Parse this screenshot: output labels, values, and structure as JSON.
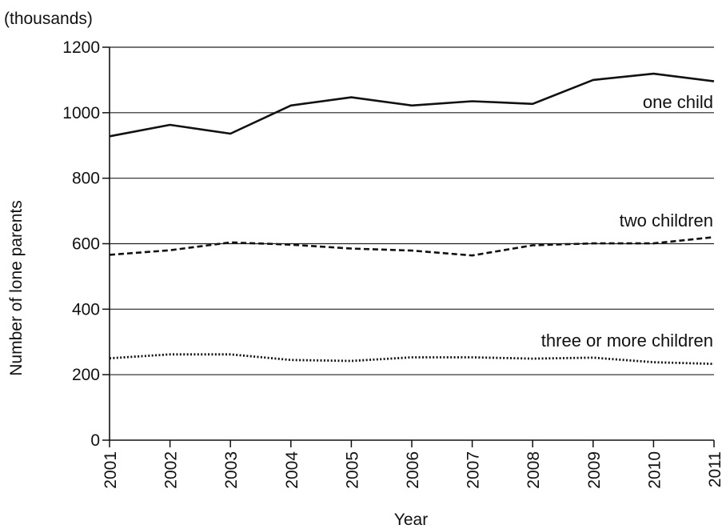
{
  "chart_data": {
    "type": "line",
    "unit_label": "(thousands)",
    "xlabel": "Year",
    "ylabel": "Number of lone parents",
    "x": [
      2001,
      2002,
      2003,
      2004,
      2005,
      2006,
      2007,
      2008,
      2009,
      2010,
      2011
    ],
    "ylim": [
      0,
      1200
    ],
    "yticks": [
      0,
      200,
      400,
      600,
      800,
      1000,
      1200
    ],
    "grid": true,
    "legend": "inline labels next to lines",
    "series": [
      {
        "name": "one child",
        "line_style": "solid",
        "values": [
          928,
          963,
          936,
          1022,
          1047,
          1022,
          1035,
          1027,
          1100,
          1119,
          1096
        ]
      },
      {
        "name": "two children",
        "line_style": "dashed",
        "values": [
          566,
          580,
          604,
          597,
          585,
          579,
          564,
          595,
          601,
          601,
          620
        ]
      },
      {
        "name": "three or more children",
        "line_style": "dotted",
        "values": [
          250,
          262,
          262,
          245,
          242,
          253,
          253,
          249,
          252,
          238,
          233
        ]
      }
    ]
  }
}
